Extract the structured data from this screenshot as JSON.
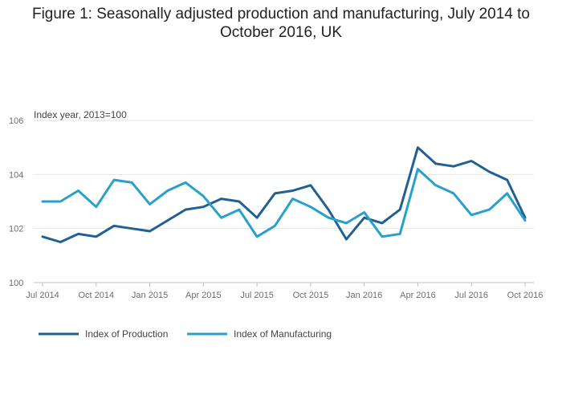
{
  "chart_data": {
    "type": "line",
    "title": "Figure 1: Seasonally adjusted production and manufacturing, July 2014 to October 2016, UK",
    "ylabel": "Index year, 2013=100",
    "xlabel": "",
    "ylim": [
      100,
      106
    ],
    "yticks": [
      "100",
      "102",
      "104",
      "106"
    ],
    "ytick_values": [
      100,
      102,
      104,
      106
    ],
    "xtick_labels": [
      "Jul 2014",
      "Oct 2014",
      "Jan 2015",
      "Apr 2015",
      "Jul 2015",
      "Oct 2015",
      "Jan 2016",
      "Apr 2016",
      "Jul 2016",
      "Oct 2016"
    ],
    "xtick_indices": [
      0,
      3,
      6,
      9,
      12,
      15,
      18,
      21,
      24,
      27
    ],
    "x": [
      "Jul 2014",
      "Aug 2014",
      "Sep 2014",
      "Oct 2014",
      "Nov 2014",
      "Dec 2014",
      "Jan 2015",
      "Feb 2015",
      "Mar 2015",
      "Apr 2015",
      "May 2015",
      "Jun 2015",
      "Jul 2015",
      "Aug 2015",
      "Sep 2015",
      "Oct 2015",
      "Nov 2015",
      "Dec 2015",
      "Jan 2016",
      "Feb 2016",
      "Mar 2016",
      "Apr 2016",
      "May 2016",
      "Jun 2016",
      "Jul 2016",
      "Aug 2016",
      "Sep 2016",
      "Oct 2016"
    ],
    "series": [
      {
        "name": "Index of Production",
        "color": "#206095",
        "values": [
          101.7,
          101.5,
          101.8,
          101.7,
          102.1,
          102.0,
          101.9,
          102.3,
          102.7,
          102.8,
          103.1,
          103.0,
          102.4,
          103.3,
          103.4,
          103.6,
          102.7,
          101.6,
          102.4,
          102.2,
          102.7,
          105.0,
          104.4,
          104.3,
          104.5,
          104.1,
          103.8,
          102.4
        ]
      },
      {
        "name": "Index of Manufacturing",
        "color": "#27a0cc",
        "values": [
          103.0,
          103.0,
          103.4,
          102.8,
          103.8,
          103.7,
          102.9,
          103.4,
          103.7,
          103.2,
          102.4,
          102.7,
          101.7,
          102.1,
          103.1,
          102.8,
          102.4,
          102.2,
          102.6,
          101.7,
          101.8,
          104.2,
          103.6,
          103.3,
          102.5,
          102.7,
          103.3,
          102.3
        ]
      }
    ]
  }
}
